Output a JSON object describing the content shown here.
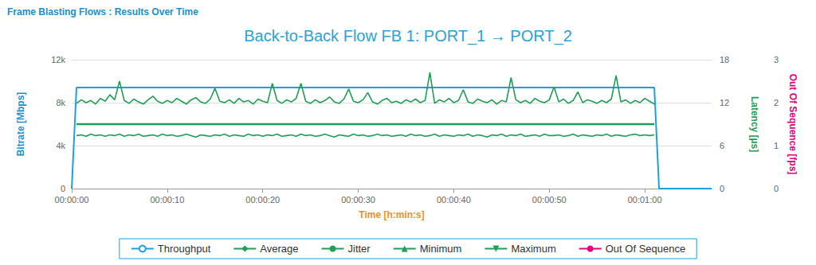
{
  "chart_data": {
    "type": "line",
    "subtitle": "Frame Blasting Flows : Results Over Time",
    "title": "Back-to-Back Flow FB 1: PORT_1 → PORT_2",
    "xlabel": "Time [h:min:s]",
    "ylabel": "Bitrate [Mbps]",
    "y2label": "Latency [µs]",
    "y3label": "Out Of Sequence [fps]",
    "xlim": [
      0,
      67
    ],
    "xticks": [
      {
        "value": 0,
        "label": "00:00:00"
      },
      {
        "value": 10,
        "label": "00:00:10"
      },
      {
        "value": 20,
        "label": "00:00:20"
      },
      {
        "value": 30,
        "label": "00:00:30"
      },
      {
        "value": 40,
        "label": "00:00:40"
      },
      {
        "value": 50,
        "label": "00:00:50"
      },
      {
        "value": 60,
        "label": "00:01:00"
      }
    ],
    "ylim": [
      0,
      12000
    ],
    "yticks": [
      0,
      {
        "value": 4000,
        "label": "4k"
      },
      {
        "value": 8000,
        "label": "8k"
      },
      {
        "value": 12000,
        "label": "12k"
      }
    ],
    "y2lim": [
      0,
      18
    ],
    "y2ticks": [
      0,
      6,
      12,
      18
    ],
    "y3lim": [
      0,
      3
    ],
    "y3ticks": [
      0,
      1,
      2,
      3
    ],
    "grid": true,
    "legend": "bottom",
    "x": [
      0,
      0.5,
      1,
      1.5,
      2,
      2.5,
      3,
      3.5,
      4,
      4.5,
      5,
      5.5,
      6,
      6.5,
      7,
      7.5,
      8,
      8.5,
      9,
      9.5,
      10,
      10.5,
      11,
      11.5,
      12,
      12.5,
      13,
      13.5,
      14,
      14.5,
      15,
      15.5,
      16,
      16.5,
      17,
      17.5,
      18,
      18.5,
      19,
      19.5,
      20,
      20.5,
      21,
      21.5,
      22,
      22.5,
      23,
      23.5,
      24,
      24.5,
      25,
      25.5,
      26,
      26.5,
      27,
      27.5,
      28,
      28.5,
      29,
      29.5,
      30,
      30.5,
      31,
      31.5,
      32,
      32.5,
      33,
      33.5,
      34,
      34.5,
      35,
      35.5,
      36,
      36.5,
      37,
      37.5,
      38,
      38.5,
      39,
      39.5,
      40,
      40.5,
      41,
      41.5,
      42,
      42.5,
      43,
      43.5,
      44,
      44.5,
      45,
      45.5,
      46,
      46.5,
      47,
      47.5,
      48,
      48.5,
      49,
      49.5,
      50,
      50.5,
      51,
      51.5,
      52,
      52.5,
      53,
      53.5,
      54,
      54.5,
      55,
      55.5,
      56,
      56.5,
      57,
      57.5,
      58,
      58.5,
      59,
      59.5,
      60,
      60.5,
      61,
      61.5,
      67
    ],
    "series": [
      {
        "name": "Throughput",
        "color": "#1ba1e2",
        "marker": "open_circle",
        "axis": "y",
        "values": [
          0,
          9400,
          9400,
          9400,
          9400,
          9400,
          9400,
          9400,
          9400,
          9400,
          9400,
          9400,
          9400,
          9400,
          9400,
          9400,
          9400,
          9400,
          9400,
          9400,
          9400,
          9400,
          9400,
          9400,
          9400,
          9400,
          9400,
          9400,
          9400,
          9400,
          9400,
          9400,
          9400,
          9400,
          9400,
          9400,
          9400,
          9400,
          9400,
          9400,
          9400,
          9400,
          9400,
          9400,
          9400,
          9400,
          9400,
          9400,
          9400,
          9400,
          9400,
          9400,
          9400,
          9400,
          9400,
          9400,
          9400,
          9400,
          9400,
          9400,
          9400,
          9400,
          9400,
          9400,
          9400,
          9400,
          9400,
          9400,
          9400,
          9400,
          9400,
          9400,
          9400,
          9400,
          9400,
          9400,
          9400,
          9400,
          9400,
          9400,
          9400,
          9400,
          9400,
          9400,
          9400,
          9400,
          9400,
          9400,
          9400,
          9400,
          9400,
          9400,
          9400,
          9400,
          9400,
          9400,
          9400,
          9400,
          9400,
          9400,
          9400,
          9400,
          9400,
          9400,
          9400,
          9400,
          9400,
          9400,
          9400,
          9400,
          9400,
          9400,
          9400,
          9400,
          9400,
          9400,
          9400,
          9400,
          9400,
          9400,
          9400,
          9400,
          9400,
          0,
          0
        ]
      },
      {
        "name": "Average",
        "color": "#1f9e55",
        "marker": "diamond",
        "axis": "y2",
        "values": [
          null,
          9,
          9,
          9,
          9,
          9,
          9,
          9,
          9,
          9,
          9,
          9,
          9,
          9,
          9,
          9,
          9,
          9,
          9,
          9,
          9,
          9,
          9,
          9,
          9,
          9,
          9,
          9,
          9,
          9,
          9,
          9,
          9,
          9,
          9,
          9,
          9,
          9,
          9,
          9,
          9,
          9,
          9,
          9,
          9,
          9,
          9,
          9,
          9,
          9,
          9,
          9,
          9,
          9,
          9,
          9,
          9,
          9,
          9,
          9,
          9,
          9,
          9,
          9,
          9,
          9,
          9,
          9,
          9,
          9,
          9,
          9,
          9,
          9,
          9,
          9,
          9,
          9,
          9,
          9,
          9,
          9,
          9,
          9,
          9,
          9,
          9,
          9,
          9,
          9,
          9,
          9,
          9,
          9,
          9,
          9,
          9,
          9,
          9,
          9,
          9,
          9,
          9,
          9,
          9,
          9,
          9,
          9,
          9,
          9,
          9,
          9,
          9,
          9,
          9,
          9,
          9,
          9,
          9,
          9,
          9,
          9,
          9,
          null,
          null
        ]
      },
      {
        "name": "Jitter",
        "color": "#1f9e55",
        "marker": "circle",
        "axis": "y2",
        "values": [
          null,
          null,
          null,
          null,
          null,
          null,
          null,
          null,
          null,
          null,
          null,
          null,
          null,
          null,
          null,
          null,
          null,
          null,
          null,
          null,
          null,
          null,
          null,
          null,
          null,
          null,
          null,
          null,
          null,
          null,
          null,
          null,
          null,
          null,
          null,
          null,
          null,
          null,
          null,
          null,
          null,
          null,
          null,
          null,
          null,
          null,
          null,
          null,
          null,
          null,
          null,
          null,
          null,
          null,
          null,
          null,
          null,
          null,
          null,
          null,
          null,
          null,
          null,
          null,
          null,
          null,
          null,
          null,
          null,
          null,
          null,
          null,
          null,
          null,
          null,
          null,
          null,
          null,
          null,
          null,
          null,
          null,
          null,
          null,
          null,
          null,
          null,
          null,
          null,
          null,
          null,
          null,
          null,
          null,
          null,
          null,
          null,
          null,
          null,
          null,
          null,
          null,
          null,
          null,
          null,
          null,
          null,
          null,
          null,
          null,
          null,
          null,
          null,
          null,
          null,
          null,
          null,
          null,
          null,
          null,
          null,
          null,
          null,
          null,
          null
        ]
      },
      {
        "name": "Minimum",
        "color": "#1f9e55",
        "marker": "triangle",
        "axis": "y2",
        "values": [
          null,
          7.4,
          7.5,
          7.3,
          7.6,
          7.4,
          7.5,
          7.3,
          7.5,
          7.4,
          7.6,
          7.3,
          7.5,
          7.4,
          7.6,
          7.3,
          7.4,
          7.5,
          7.3,
          7.6,
          7.4,
          7.5,
          7.3,
          7.4,
          7.6,
          7.4,
          7.2,
          7.5,
          7.4,
          7.3,
          7.5,
          7.4,
          7.6,
          7.3,
          7.5,
          7.4,
          7.3,
          7.6,
          7.4,
          7.5,
          7.3,
          7.5,
          7.4,
          7.6,
          7.3,
          7.4,
          7.5,
          7.3,
          7.6,
          7.4,
          7.5,
          7.3,
          7.4,
          7.6,
          7.4,
          7.2,
          7.5,
          7.4,
          7.3,
          7.6,
          7.4,
          7.5,
          7.3,
          7.4,
          7.6,
          7.4,
          7.5,
          7.3,
          7.4,
          7.5,
          7.3,
          7.6,
          7.4,
          7.5,
          7.3,
          7.4,
          7.6,
          7.3,
          7.5,
          7.4,
          7.3,
          7.5,
          7.4,
          7.6,
          7.3,
          7.5,
          7.4,
          7.2,
          7.5,
          7.4,
          7.6,
          7.3,
          7.5,
          7.4,
          7.6,
          7.3,
          7.4,
          7.5,
          7.3,
          7.6,
          7.4,
          7.4,
          7.5,
          7.3,
          7.4,
          7.6,
          7.3,
          7.5,
          7.4,
          7.3,
          7.5,
          7.4,
          7.6,
          7.3,
          7.5,
          7.4,
          7.3,
          7.5,
          7.6,
          7.4,
          7.5,
          7.4,
          7.5,
          null,
          null
        ]
      },
      {
        "name": "Maximum",
        "color": "#1f9e55",
        "marker": "triangle_down",
        "axis": "y2",
        "values": [
          null,
          11.9,
          12.4,
          12.0,
          12.3,
          11.8,
          12.6,
          12.2,
          13.1,
          12.4,
          15.0,
          12.3,
          11.9,
          12.5,
          12.1,
          11.8,
          12.4,
          12.9,
          12.2,
          11.9,
          12.3,
          12.0,
          12.6,
          12.2,
          11.8,
          12.4,
          12.7,
          12.1,
          11.9,
          12.5,
          14.0,
          12.2,
          12.0,
          12.4,
          11.9,
          12.6,
          12.1,
          12.3,
          11.8,
          12.5,
          12.2,
          12.0,
          14.7,
          12.3,
          11.9,
          12.4,
          12.1,
          12.6,
          14.7,
          12.2,
          11.9,
          12.4,
          12.0,
          12.3,
          12.8,
          12.1,
          11.9,
          12.5,
          13.9,
          12.2,
          12.0,
          12.4,
          13.4,
          12.1,
          11.8,
          12.3,
          12.6,
          12.0,
          12.2,
          11.9,
          12.4,
          12.1,
          12.5,
          12.0,
          12.3,
          16.2,
          11.9,
          12.4,
          12.1,
          12.6,
          12.0,
          12.3,
          13.8,
          12.1,
          11.9,
          12.5,
          12.2,
          12.0,
          12.4,
          11.8,
          12.3,
          12.1,
          15.5,
          12.4,
          12.0,
          12.3,
          11.9,
          12.6,
          12.2,
          12.0,
          12.4,
          14.2,
          12.1,
          12.5,
          11.9,
          12.3,
          13.5,
          12.0,
          12.4,
          12.2,
          11.9,
          12.3,
          12.0,
          12.5,
          15.8,
          12.1,
          12.4,
          11.9,
          12.3,
          12.0,
          12.6,
          12.2,
          11.8,
          null,
          null
        ]
      },
      {
        "name": "Out Of Sequence",
        "color": "#e6007e",
        "marker": "circle",
        "axis": "y3",
        "values": [
          null,
          null,
          null,
          null,
          null,
          null,
          null,
          null,
          null,
          null,
          null,
          null,
          null,
          null,
          null,
          null,
          null,
          null,
          null,
          null,
          null,
          null,
          null,
          null,
          null,
          null,
          null,
          null,
          null,
          null,
          null,
          null,
          null,
          null,
          null,
          null,
          null,
          null,
          null,
          null,
          null,
          null,
          null,
          null,
          null,
          null,
          null,
          null,
          null,
          null,
          null,
          null,
          null,
          null,
          null,
          null,
          null,
          null,
          null,
          null,
          null,
          null,
          null,
          null,
          null,
          null,
          null,
          null,
          null,
          null,
          null,
          null,
          null,
          null,
          null,
          null,
          null,
          null,
          null,
          null,
          null,
          null,
          null,
          null,
          null,
          null,
          null,
          null,
          null,
          null,
          null,
          null,
          null,
          null,
          null,
          null,
          null,
          null,
          null,
          null,
          null,
          null,
          null,
          null,
          null,
          null,
          null,
          null,
          null,
          null,
          null,
          null,
          null,
          null,
          null,
          null,
          null,
          null,
          null,
          null,
          null,
          null,
          null,
          null,
          null
        ]
      }
    ]
  }
}
